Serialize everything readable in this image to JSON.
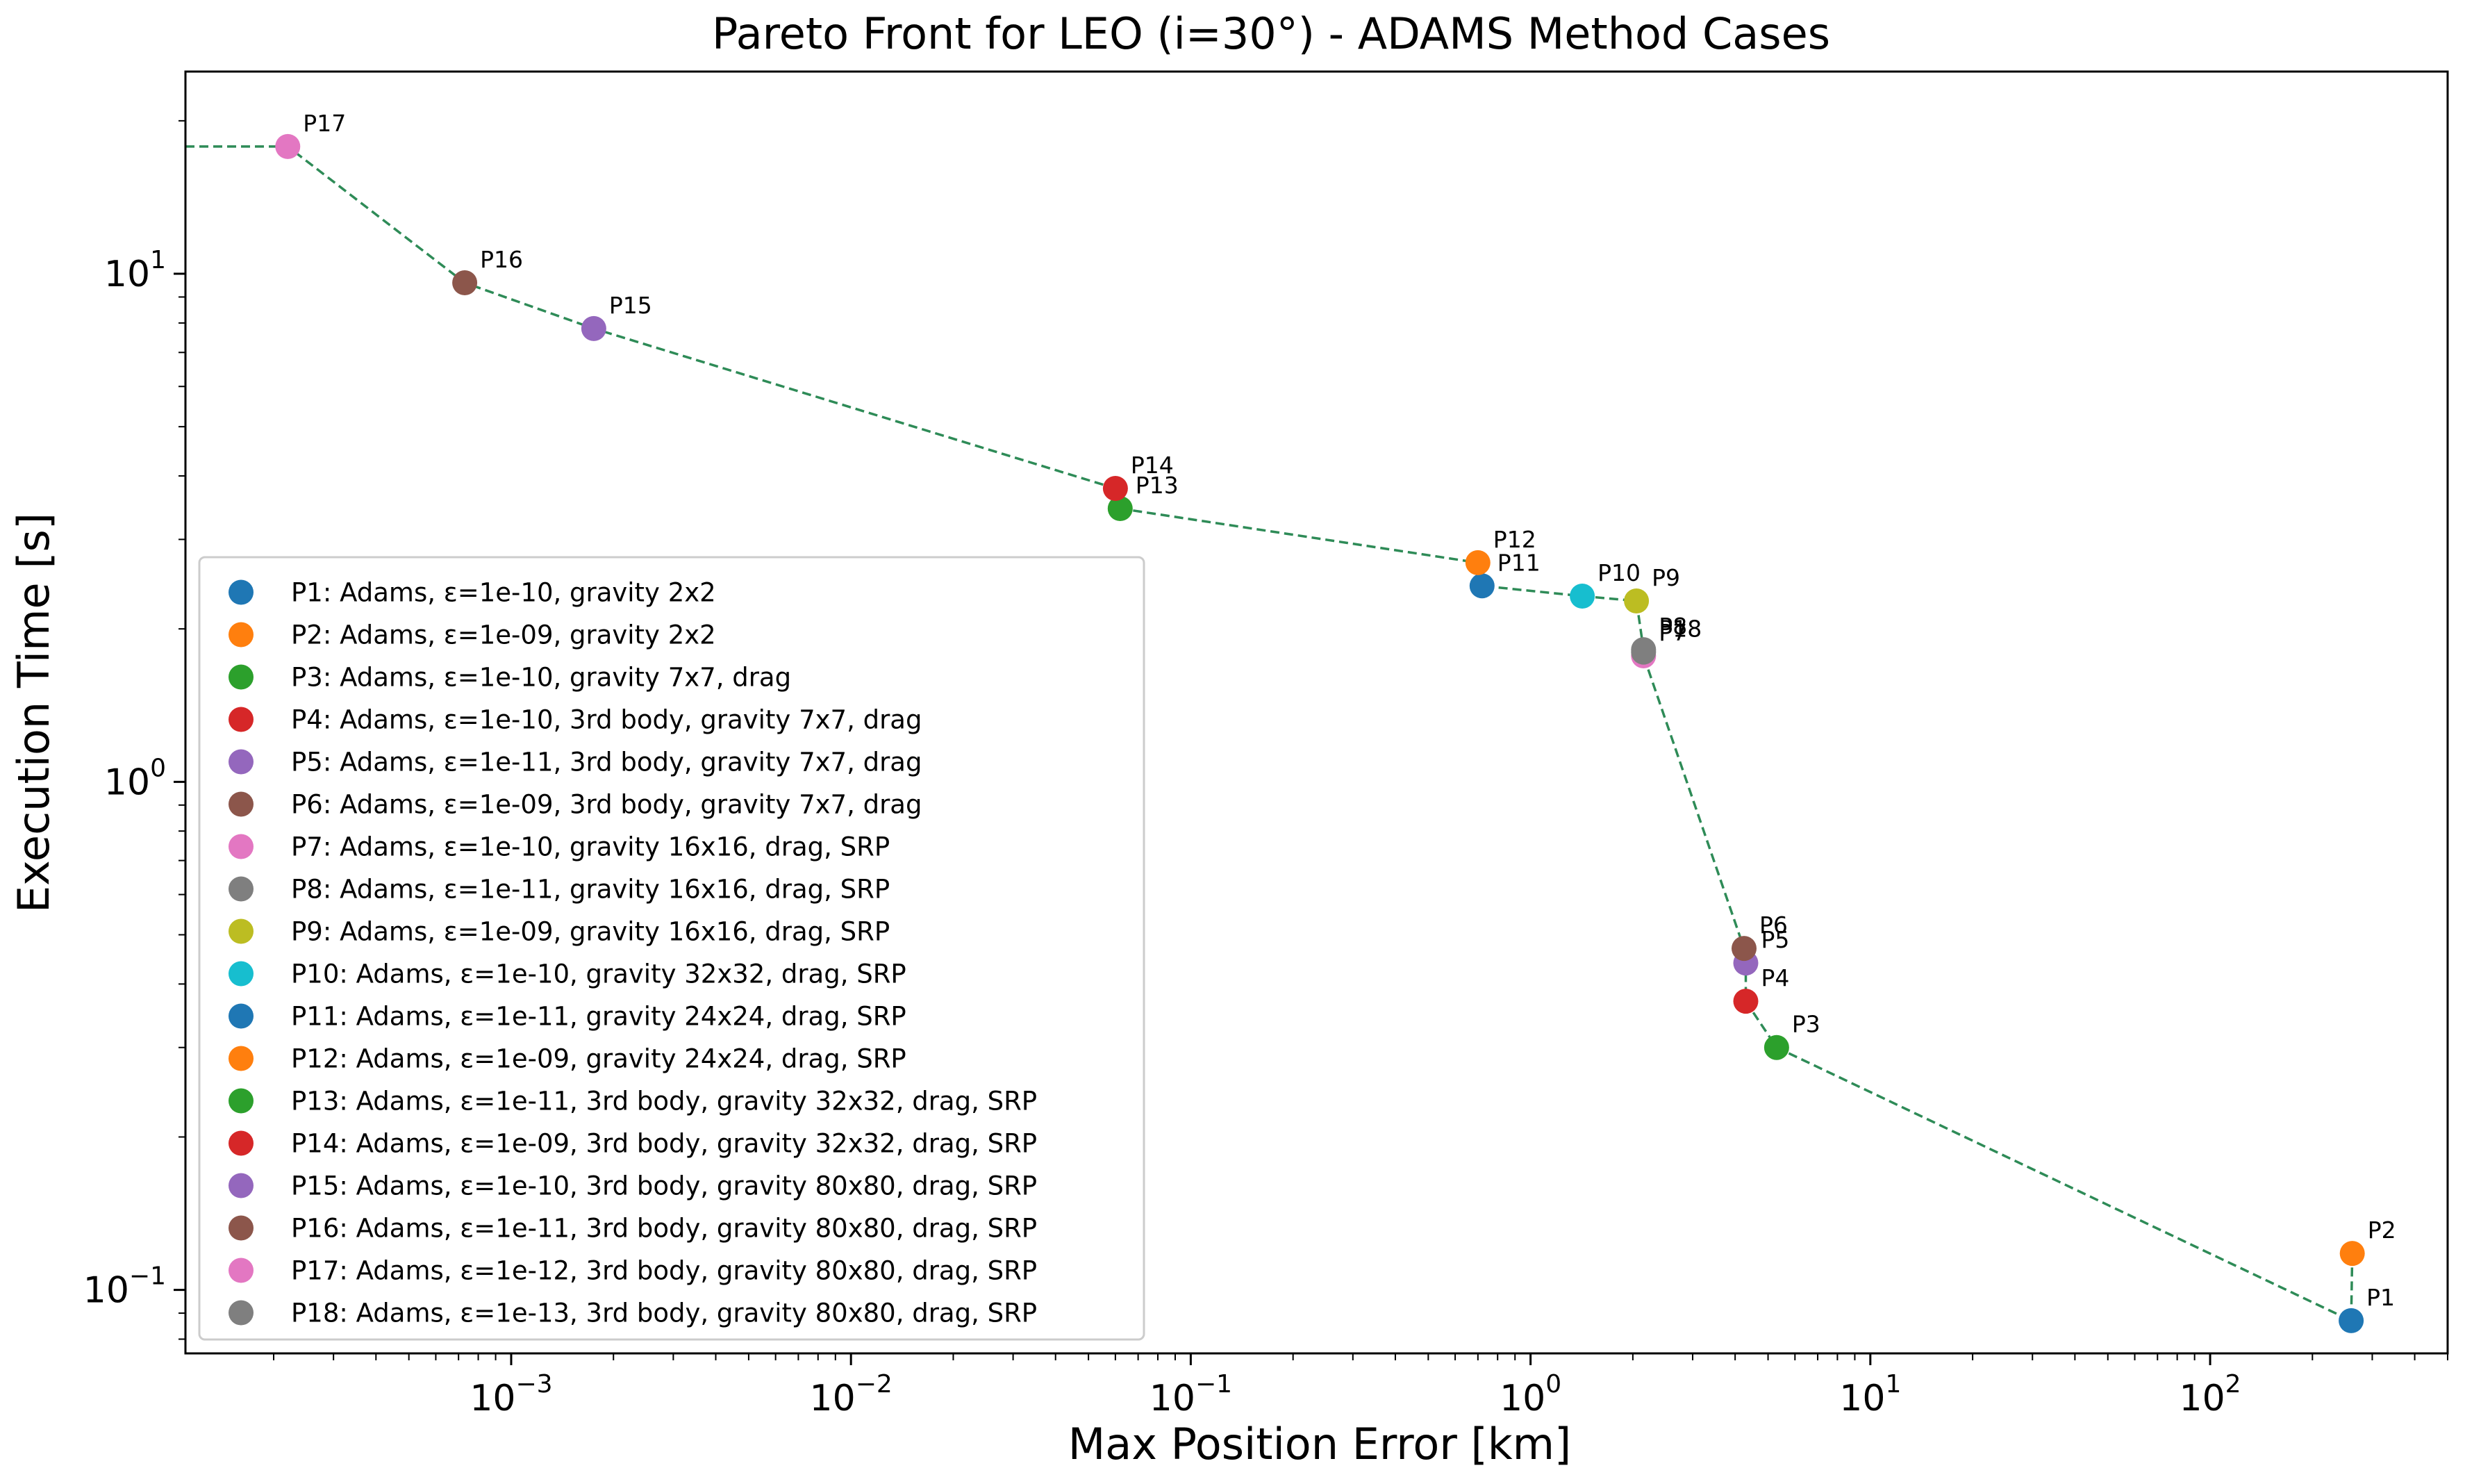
{
  "chart_data": {
    "type": "scatter",
    "title": "Pareto Front for LEO (i=30°) - ADAMS Method Cases",
    "xlabel": "Max Position Error [km]",
    "ylabel": "Execution Time [s]",
    "xscale": "log",
    "yscale": "log",
    "xlim": [
      0.00011,
      500
    ],
    "ylim": [
      0.075,
      25
    ],
    "x_ticks": [
      {
        "value": 0.001,
        "base": "10",
        "exp": "−3"
      },
      {
        "value": 0.01,
        "base": "10",
        "exp": "−2"
      },
      {
        "value": 0.1,
        "base": "10",
        "exp": "−1"
      },
      {
        "value": 1,
        "base": "10",
        "exp": "0"
      },
      {
        "value": 10,
        "base": "10",
        "exp": "1"
      },
      {
        "value": 100,
        "base": "10",
        "exp": "2"
      }
    ],
    "y_ticks": [
      {
        "value": 0.1,
        "base": "10",
        "exp": "−1"
      },
      {
        "value": 1,
        "base": "10",
        "exp": "0"
      },
      {
        "value": 10,
        "base": "10",
        "exp": "1"
      }
    ],
    "grid": false,
    "legend_position": "lower-left",
    "front_line_color": "#2e8b57",
    "series": [
      {
        "point": "P1",
        "label": "P1: Adams, ε=1e-10, gravity 2x2",
        "x": 260,
        "y": 0.087,
        "color": "#1f77b4"
      },
      {
        "point": "P2",
        "label": "P2: Adams, ε=1e-09, gravity 2x2",
        "x": 262,
        "y": 0.118,
        "color": "#ff7f0e"
      },
      {
        "point": "P3",
        "label": "P3: Adams, ε=1e-10, gravity 7x7, drag",
        "x": 5.3,
        "y": 0.3,
        "color": "#2ca02c"
      },
      {
        "point": "P4",
        "label": "P4: Adams, ε=1e-10, 3rd body, gravity 7x7, drag",
        "x": 4.3,
        "y": 0.37,
        "color": "#d62728"
      },
      {
        "point": "P5",
        "label": "P5: Adams, ε=1e-11, 3rd body, gravity 7x7, drag",
        "x": 4.3,
        "y": 0.44,
        "color": "#9467bd"
      },
      {
        "point": "P6",
        "label": "P6: Adams, ε=1e-09, 3rd body, gravity 7x7, drag",
        "x": 4.25,
        "y": 0.47,
        "color": "#8c564b"
      },
      {
        "point": "P7",
        "label": "P7: Adams, ε=1e-10, gravity 16x16, drag, SRP",
        "x": 2.15,
        "y": 1.77,
        "color": "#e377c2"
      },
      {
        "point": "P8",
        "label": "P8: Adams, ε=1e-11, gravity 16x16, drag, SRP",
        "x": 2.15,
        "y": 1.82,
        "color": "#7f7f7f"
      },
      {
        "point": "P9",
        "label": "P9: Adams, ε=1e-09, gravity 16x16, drag, SRP",
        "x": 2.05,
        "y": 2.27,
        "color": "#bcbd22"
      },
      {
        "point": "P10",
        "label": "P10: Adams, ε=1e-10, gravity 32x32, drag, SRP",
        "x": 1.42,
        "y": 2.32,
        "color": "#17becf"
      },
      {
        "point": "P11",
        "label": "P11: Adams, ε=1e-11, gravity 24x24, drag, SRP",
        "x": 0.72,
        "y": 2.43,
        "color": "#1f77b4"
      },
      {
        "point": "P12",
        "label": "P12: Adams, ε=1e-09, gravity 24x24, drag, SRP",
        "x": 0.7,
        "y": 2.7,
        "color": "#ff7f0e"
      },
      {
        "point": "P13",
        "label": "P13: Adams, ε=1e-11, 3rd body, gravity 32x32, drag, SRP",
        "x": 0.062,
        "y": 3.45,
        "color": "#2ca02c"
      },
      {
        "point": "P14",
        "label": "P14: Adams, ε=1e-09, 3rd body, gravity 32x32, drag, SRP",
        "x": 0.06,
        "y": 3.78,
        "color": "#d62728"
      },
      {
        "point": "P15",
        "label": "P15: Adams, ε=1e-10, 3rd body, gravity 80x80, drag, SRP",
        "x": 0.00175,
        "y": 7.8,
        "color": "#9467bd"
      },
      {
        "point": "P16",
        "label": "P16: Adams, ε=1e-11, 3rd body, gravity 80x80, drag, SRP",
        "x": 0.00073,
        "y": 9.6,
        "color": "#8c564b"
      },
      {
        "point": "P17",
        "label": "P17: Adams, ε=1e-12, 3rd body, gravity 80x80, drag, SRP",
        "x": 0.00022,
        "y": 17.8,
        "color": "#e377c2"
      },
      {
        "point": "P18",
        "label": "P18: Adams, ε=1e-13, 3rd body, gravity 80x80, drag, SRP",
        "x": 2.15,
        "y": 1.8,
        "color": "#7f7f7f"
      }
    ]
  }
}
